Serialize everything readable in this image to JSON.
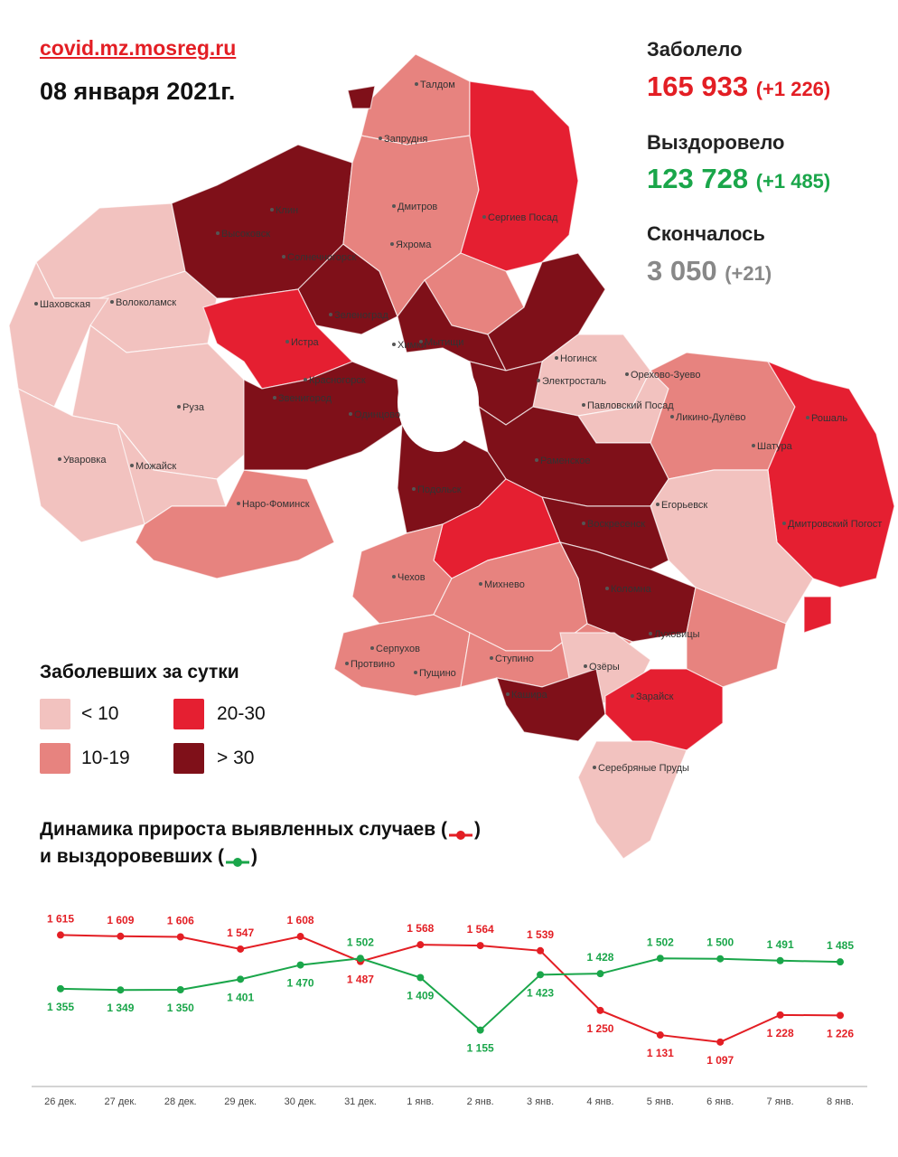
{
  "header": {
    "source": "covid.mz.mosreg.ru",
    "date": "08 января 2021г."
  },
  "stats": {
    "sick_label": "Заболело",
    "sick_value": "165 933",
    "sick_delta": "(+1 226)",
    "recovered_label": "Выздоровело",
    "recovered_value": "123 728",
    "recovered_delta": "(+1 485)",
    "died_label": "Скончалось",
    "died_value": "3 050",
    "died_delta": "(+21)"
  },
  "colors": {
    "red": "#e31e24",
    "green": "#1aa64a",
    "grey": "#888888",
    "lt10": "#f2c2bf",
    "b10_19": "#e7837f",
    "b20_30": "#e51f31",
    "gt30": "#7f1019"
  },
  "legend": {
    "title": "Заболевших за сутки",
    "items": [
      {
        "label": "< 10",
        "color": "#f2c2bf"
      },
      {
        "label": "10-19",
        "color": "#e7837f"
      },
      {
        "label": "20-30",
        "color": "#e51f31"
      },
      {
        "label": "> 30",
        "color": "#7f1019"
      }
    ]
  },
  "map": {
    "cities": [
      "Талдом",
      "Запрудня",
      "Дмитров",
      "Яхрома",
      "Сергиев Посад",
      "Клин",
      "Высоковск",
      "Солнечногорск",
      "Зеленоград",
      "Мытищи",
      "Химки",
      "Истра",
      "Красногорск",
      "Звенигород",
      "Одинцово",
      "Шаховская",
      "Волоколамск",
      "Руза",
      "Уваровка",
      "Можайск",
      "Наро-Фоминск",
      "Ногинск",
      "Электросталь",
      "Павловский Посад",
      "Орехово-Зуево",
      "Ликино-Дулёво",
      "Рошаль",
      "Шатура",
      "Раменское",
      "Егорьевск",
      "Дмитровский Погост",
      "Подольск",
      "Воскресенск",
      "Чехов",
      "Михнево",
      "Коломна",
      "Серпухов",
      "Протвино",
      "Пущино",
      "Ступино",
      "Озёры",
      "Луховицы",
      "Кашира",
      "Зарайск",
      "Серебряные Пруды"
    ]
  },
  "chart_titles": {
    "line1": "Динамика прироста выявленных случаев (",
    "line1_end": ")",
    "line2": "и выздоровевших (",
    "line2_end": ")"
  },
  "chart_data": {
    "type": "line",
    "categories": [
      "26 дек.",
      "27 дек.",
      "28 дек.",
      "29 дек.",
      "30 дек.",
      "31 дек.",
      "1 янв.",
      "2 янв.",
      "3 янв.",
      "4 янв.",
      "5 янв.",
      "6 янв.",
      "7 янв.",
      "8 янв."
    ],
    "series": [
      {
        "name": "выявленные случаи",
        "color": "#e31e24",
        "values": [
          1615,
          1609,
          1606,
          1547,
          1608,
          1487,
          1568,
          1564,
          1539,
          1250,
          1131,
          1097,
          1228,
          1226
        ],
        "labels": [
          "1 615",
          "1 609",
          "1 606",
          "1 547",
          "1 608",
          "1 487",
          "1 568",
          "1 564",
          "1 539",
          "1 250",
          "1 131",
          "1 097",
          "1 228",
          "1 226"
        ]
      },
      {
        "name": "выздоровевшие",
        "color": "#1aa64a",
        "values": [
          1355,
          1349,
          1350,
          1401,
          1470,
          1502,
          1409,
          1155,
          1423,
          1428,
          1502,
          1500,
          1491,
          1485
        ],
        "labels": [
          "1 355",
          "1 349",
          "1 350",
          "1 401",
          "1 470",
          "1 502",
          "1 409",
          "1 155",
          "1 423",
          "1 428",
          "1 502",
          "1 500",
          "1 491",
          "1 485"
        ]
      }
    ],
    "ylim": [
      1000,
      1700
    ]
  }
}
